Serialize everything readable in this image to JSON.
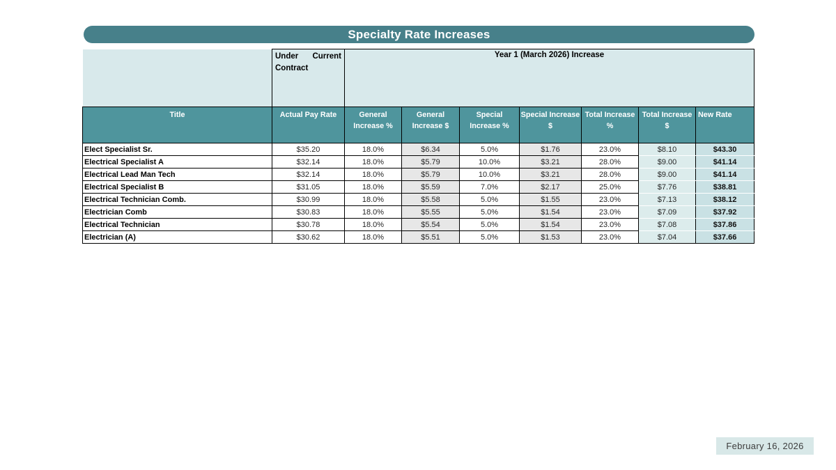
{
  "title": "Specialty Rate Increases",
  "header": {
    "under_contract": "Under Current Contract",
    "year1": "Year 1 (March 2026) Increase"
  },
  "table": {
    "columns": [
      "Title",
      "Actual Pay Rate",
      "General Increase %",
      "General Increase $",
      "Special Increase %",
      "Special Increase $",
      "Total Increase %",
      "Total Increase $",
      "New Rate"
    ],
    "rows": [
      [
        "Elect Specialist Sr.",
        "$35.20",
        "18.0%",
        "$6.34",
        "5.0%",
        "$1.76",
        "23.0%",
        "$8.10",
        "$43.30"
      ],
      [
        "Electrical Specialist A",
        "$32.14",
        "18.0%",
        "$5.79",
        "10.0%",
        "$3.21",
        "28.0%",
        "$9.00",
        "$41.14"
      ],
      [
        "Electrical Lead Man Tech",
        "$32.14",
        "18.0%",
        "$5.79",
        "10.0%",
        "$3.21",
        "28.0%",
        "$9.00",
        "$41.14"
      ],
      [
        "Electrical Specialist B",
        "$31.05",
        "18.0%",
        "$5.59",
        "7.0%",
        "$2.17",
        "25.0%",
        "$7.76",
        "$38.81"
      ],
      [
        "Electrical Technician Comb.",
        "$30.99",
        "18.0%",
        "$5.58",
        "5.0%",
        "$1.55",
        "23.0%",
        "$7.13",
        "$38.12"
      ],
      [
        "Electrician Comb",
        "$30.83",
        "18.0%",
        "$5.55",
        "5.0%",
        "$1.54",
        "23.0%",
        "$7.09",
        "$37.92"
      ],
      [
        "Electrical Technician",
        "$30.78",
        "18.0%",
        "$5.54",
        "5.0%",
        "$1.54",
        "23.0%",
        "$7.08",
        "$37.86"
      ],
      [
        "Electrician (A)",
        "$30.62",
        "18.0%",
        "$5.51",
        "5.0%",
        "$1.53",
        "23.0%",
        "$7.04",
        "$37.66"
      ]
    ]
  },
  "footer": {
    "date": "February 16, 2026"
  },
  "colors": {
    "title_bar": "#47808a",
    "column_header": "#4f959d",
    "merged_header_bg": "#d8e9eb",
    "gray_column_bg": "#e7e7e7",
    "total_dollar_column_bg": "#dcecec",
    "new_rate_column_bg": "#c9e1e4",
    "date_badge_bg": "#d8e8e8"
  }
}
